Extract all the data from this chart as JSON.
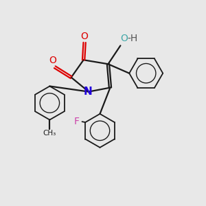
{
  "background_color": "#e8e8e8",
  "bond_color": "#1a1a1a",
  "N_color": "#2200dd",
  "O_color": "#dd0000",
  "F_color": "#cc44aa",
  "OH_O_color": "#44aaaa",
  "OH_H_color": "#555555",
  "figsize": [
    3.0,
    3.0
  ],
  "dpi": 100,
  "xlim": [
    0,
    10
  ],
  "ylim": [
    0,
    10
  ]
}
